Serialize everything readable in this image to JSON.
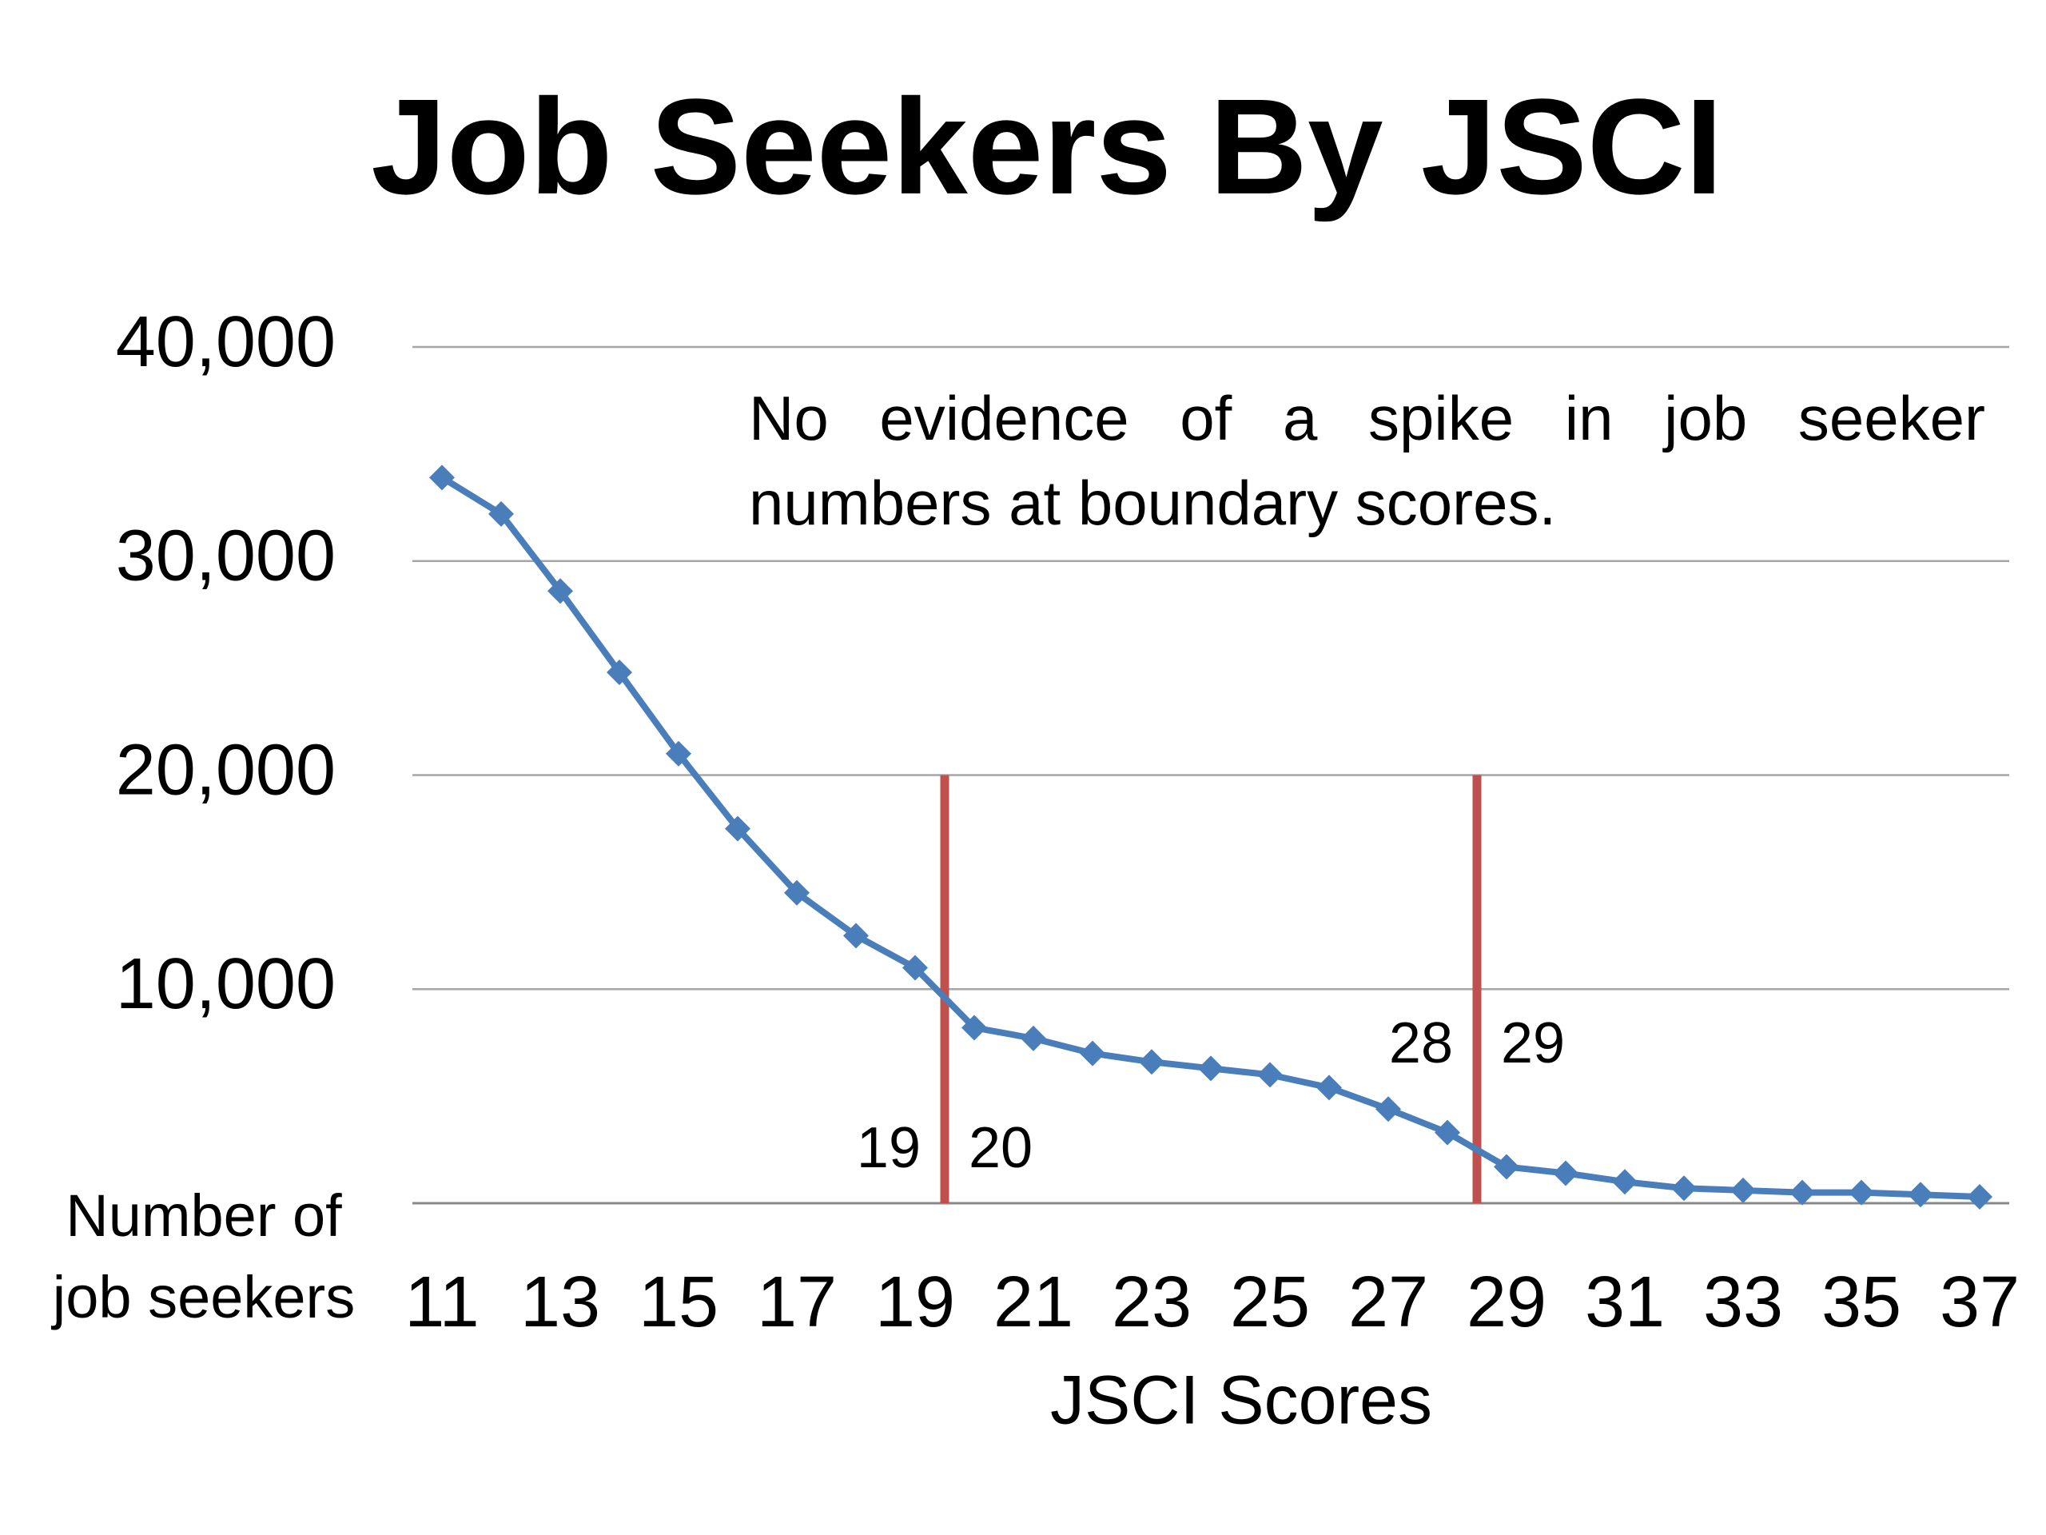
{
  "chart_data": {
    "type": "line",
    "title": "Job Seekers By JSCI",
    "x": [
      11,
      12,
      13,
      14,
      15,
      16,
      17,
      18,
      19,
      20,
      21,
      22,
      23,
      24,
      25,
      26,
      27,
      28,
      29,
      30,
      31,
      32,
      33,
      34,
      35,
      36,
      37
    ],
    "series": [
      {
        "color": "#4a7ebb",
        "values": [
          33900,
          32200,
          28600,
          24800,
          21000,
          17500,
          14500,
          12500,
          11000,
          8200,
          7700,
          7000,
          6600,
          6300,
          6000,
          5400,
          4400,
          3300,
          1700,
          1400,
          1000,
          700,
          600,
          500,
          500,
          400,
          300
        ]
      }
    ],
    "xlim": [
      10.5,
      37.5
    ],
    "xticks": [
      11,
      13,
      15,
      17,
      19,
      21,
      23,
      25,
      27,
      29,
      31,
      33,
      35,
      37
    ],
    "ylim": [
      0,
      40000
    ],
    "yticks": [
      {
        "value": 10000,
        "label": "10,000"
      },
      {
        "value": 20000,
        "label": "20,000"
      },
      {
        "value": 30000,
        "label": "30,000"
      },
      {
        "value": 40000,
        "label": "40,000"
      }
    ],
    "grid": true,
    "x_label": "JSCI Scores",
    "y_label": "Number of job seekers",
    "annotation": "No evidence of a spike in job seeker numbers at boundary scores.",
    "boundaries": [
      {
        "x": 19.5,
        "ymax": 20000,
        "labels": [
          "19",
          "20"
        ],
        "color": "#c0504d"
      },
      {
        "x": 28.5,
        "ymax": 20000,
        "labels": [
          "28",
          "29"
        ],
        "color": "#c0504d"
      }
    ]
  }
}
